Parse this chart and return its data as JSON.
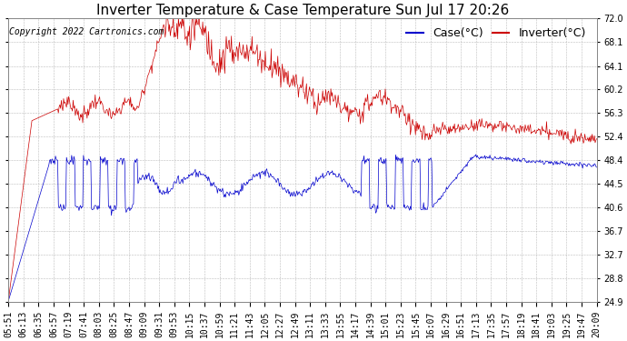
{
  "title": "Inverter Temperature & Case Temperature Sun Jul 17 20:26",
  "copyright": "Copyright 2022 Cartronics.com",
  "yticks": [
    24.9,
    28.8,
    32.7,
    36.7,
    40.6,
    44.5,
    48.4,
    52.4,
    56.3,
    60.2,
    64.1,
    68.1,
    72.0
  ],
  "ylim": [
    24.9,
    72.0
  ],
  "xtick_labels": [
    "05:51",
    "06:13",
    "06:35",
    "06:57",
    "07:19",
    "07:41",
    "08:03",
    "08:25",
    "08:47",
    "09:09",
    "09:31",
    "09:53",
    "10:15",
    "10:37",
    "10:59",
    "11:21",
    "11:43",
    "12:05",
    "12:27",
    "12:49",
    "13:11",
    "13:33",
    "13:55",
    "14:17",
    "14:39",
    "15:01",
    "15:23",
    "15:45",
    "16:07",
    "16:29",
    "16:51",
    "17:13",
    "17:35",
    "17:57",
    "18:19",
    "18:41",
    "19:03",
    "19:25",
    "19:47",
    "20:09"
  ],
  "case_color": "#0000cc",
  "inverter_color": "#cc0000",
  "background_color": "#ffffff",
  "grid_color": "#bbbbbb",
  "title_fontsize": 11,
  "copyright_fontsize": 7,
  "tick_fontsize": 7,
  "legend_fontsize": 9
}
